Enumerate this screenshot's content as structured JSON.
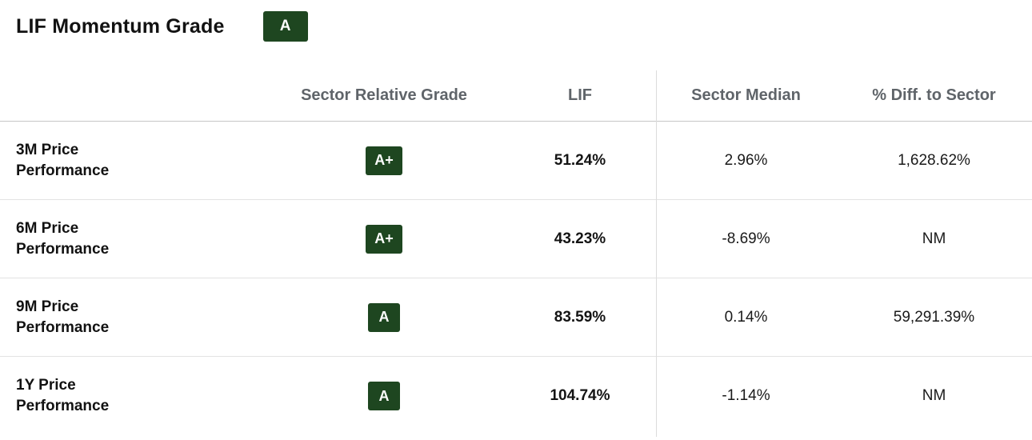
{
  "colors": {
    "badge_bg": "#1e4620",
    "badge_text": "#ffffff",
    "header_text": "#5f6469"
  },
  "header": {
    "title": "LIF Momentum Grade",
    "overall_grade": "A"
  },
  "table": {
    "columns": [
      "Sector Relative Grade",
      "LIF",
      "Sector Median",
      "% Diff. to Sector"
    ],
    "rows": [
      {
        "label": "3M Price Performance",
        "grade": "A+",
        "lif": "51.24%",
        "sector_median": "2.96%",
        "diff_to_sector": "1,628.62%"
      },
      {
        "label": "6M Price Performance",
        "grade": "A+",
        "lif": "43.23%",
        "sector_median": "-8.69%",
        "diff_to_sector": "NM"
      },
      {
        "label": "9M Price Performance",
        "grade": "A",
        "lif": "83.59%",
        "sector_median": "0.14%",
        "diff_to_sector": "59,291.39%"
      },
      {
        "label": "1Y Price Performance",
        "grade": "A",
        "lif": "104.74%",
        "sector_median": "-1.14%",
        "diff_to_sector": "NM"
      }
    ]
  }
}
